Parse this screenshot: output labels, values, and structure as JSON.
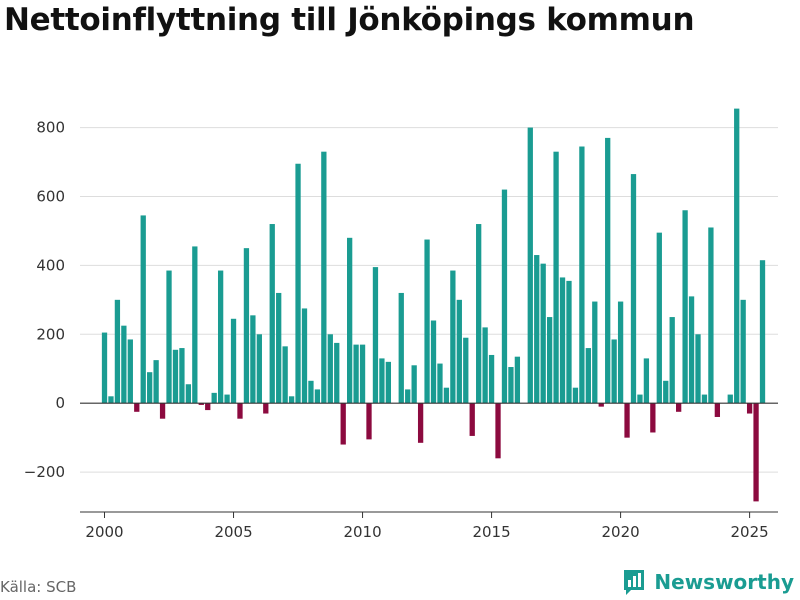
{
  "title": "Nettoinflyttning till Jönköpings kommun",
  "source": "Källa: SCB",
  "brand": {
    "name": "Newsworthy",
    "icon": "bar-chart-logo-icon"
  },
  "colors": {
    "positive": "#1a9c92",
    "negative": "#8c0a3f",
    "grid": "#dddddd",
    "axis": "#333333"
  },
  "chart_data": {
    "type": "bar",
    "title": "Nettoinflyttning till Jönköpings kommun",
    "xlabel": "",
    "ylabel": "",
    "ylim": [
      -310,
      880
    ],
    "xlim": [
      1999.05,
      2026.1
    ],
    "yticks": [
      -200,
      0,
      200,
      400,
      600,
      800
    ],
    "ytick_labels": [
      "−200",
      "0",
      "200",
      "400",
      "600",
      "800"
    ],
    "xticks": [
      2000,
      2005,
      2010,
      2015,
      2020,
      2025
    ],
    "xtick_labels": [
      "2000",
      "2005",
      "2010",
      "2015",
      "2020",
      "2025"
    ],
    "grid": true,
    "frequency": "quarterly",
    "start_year": 2000,
    "series": [
      {
        "name": "Nettoinflyttning",
        "values": [
          205,
          20,
          300,
          225,
          185,
          -25,
          545,
          90,
          125,
          -45,
          385,
          155,
          160,
          55,
          455,
          -5,
          -20,
          30,
          385,
          25,
          245,
          -45,
          450,
          255,
          200,
          -30,
          520,
          320,
          165,
          20,
          695,
          275,
          65,
          40,
          730,
          200,
          175,
          -120,
          480,
          170,
          170,
          -105,
          395,
          130,
          120,
          0,
          320,
          40,
          110,
          -115,
          475,
          240,
          115,
          45,
          385,
          300,
          190,
          -95,
          520,
          220,
          140,
          -160,
          620,
          105,
          135,
          0,
          800,
          430,
          405,
          250,
          730,
          365,
          355,
          45,
          745,
          160,
          295,
          -10,
          770,
          185,
          295,
          -100,
          665,
          25,
          130,
          -85,
          495,
          65,
          250,
          -25,
          560,
          310,
          200,
          25,
          510,
          -40,
          0,
          25,
          855,
          300,
          -30,
          -285,
          415
        ]
      }
    ]
  }
}
